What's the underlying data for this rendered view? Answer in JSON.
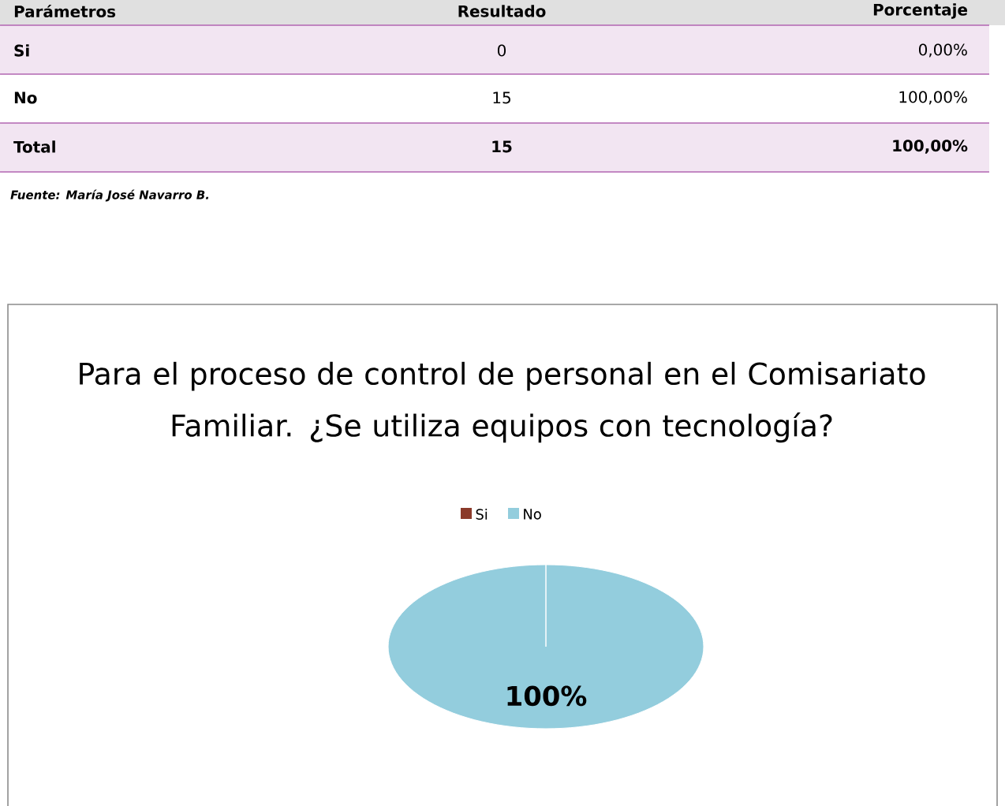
{
  "chart_data": {
    "type": "pie",
    "title": "Para el proceso de control de personal en el Comisariato Familiar. ¿Se utiliza equipos con tecnología?",
    "categories": [
      "Si",
      "No"
    ],
    "values": [
      0,
      100
    ],
    "colors": [
      "#8b3a2a",
      "#93cddd"
    ],
    "value_labels": [
      null,
      "100%"
    ],
    "legend": "top",
    "annotations": [
      "Parámetros",
      "Resultado",
      "Porcentaje",
      "Si",
      "0",
      "0,00%",
      "No",
      "15",
      "100,00%",
      "Total",
      "15",
      "100,00%",
      "Fuente: María José Navarro B."
    ]
  }
}
